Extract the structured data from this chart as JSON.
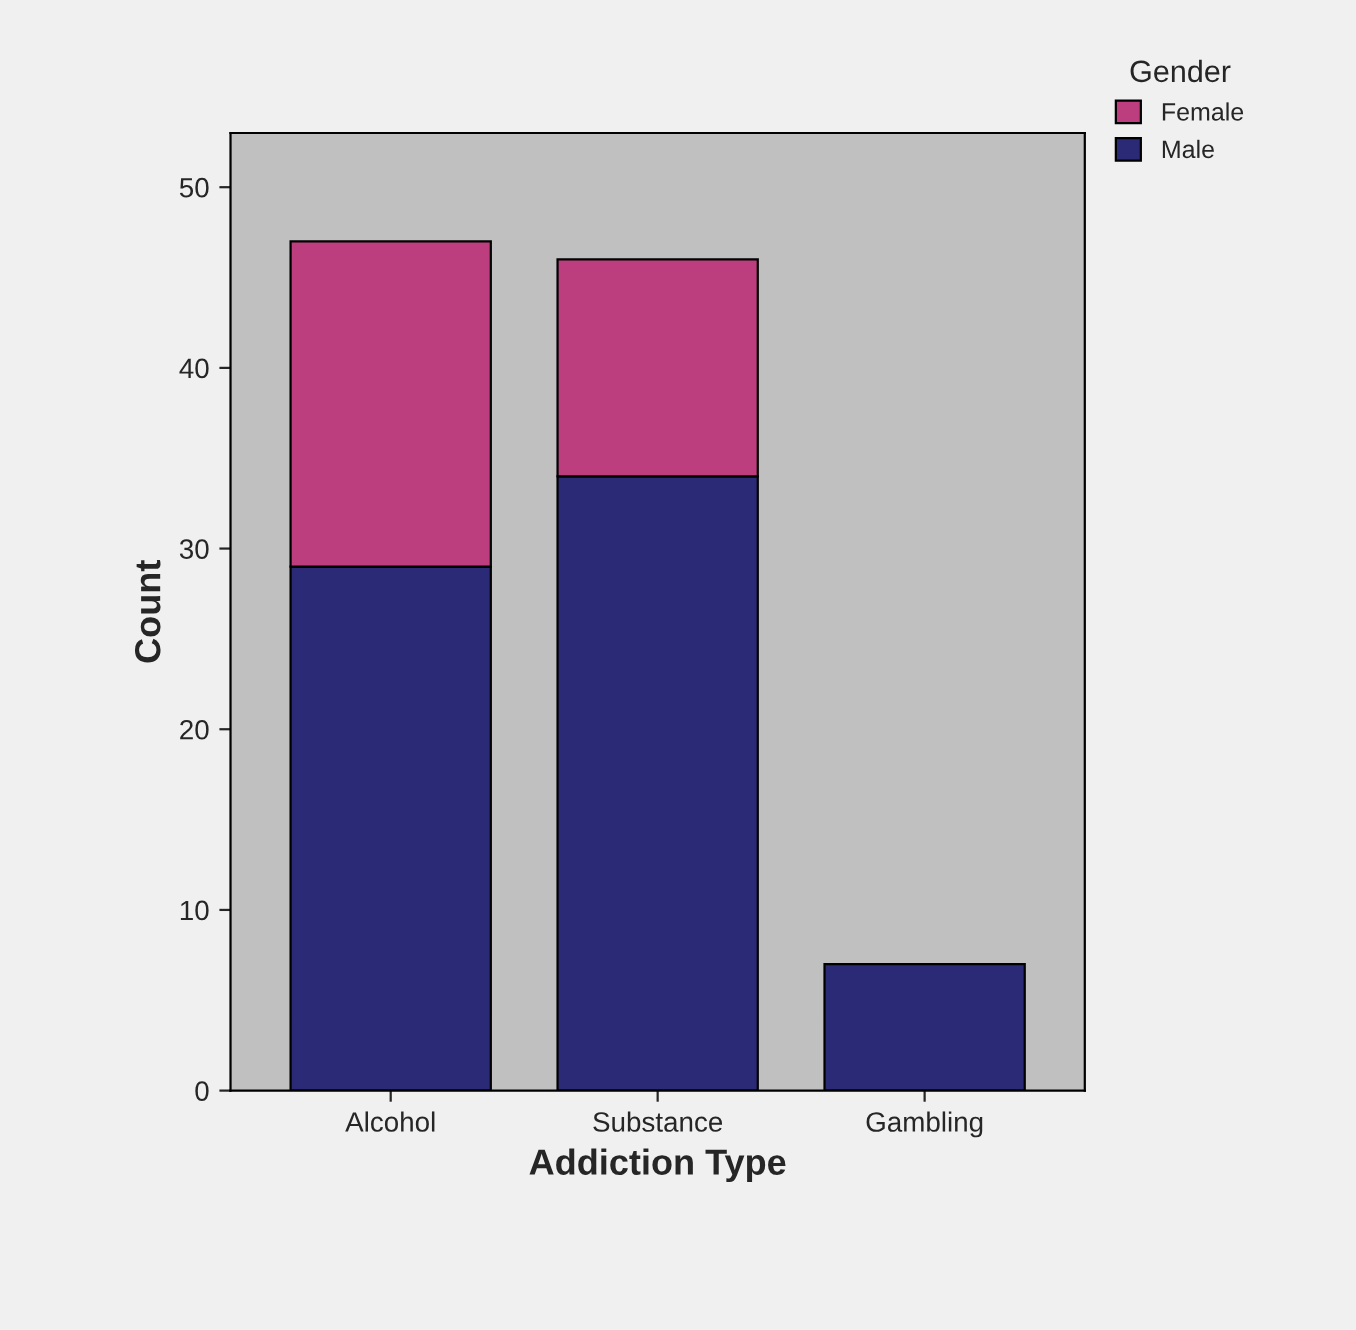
{
  "chart_data": {
    "type": "bar",
    "stacked": true,
    "xlabel": "Addiction Type",
    "ylabel": "Count",
    "legend_title": "Gender",
    "legend": "top right",
    "categories": [
      "Alcohol",
      "Substance",
      "Gambling"
    ],
    "series": [
      {
        "name": "Male",
        "color": "#2b2a77",
        "values": [
          29,
          34,
          7
        ]
      },
      {
        "name": "Female",
        "color": "#bc3e7f",
        "values": [
          18,
          12,
          null
        ]
      }
    ],
    "ylim": [
      0,
      53
    ],
    "yticks": [
      0,
      10,
      20,
      30,
      40,
      50
    ],
    "grid": false
  }
}
